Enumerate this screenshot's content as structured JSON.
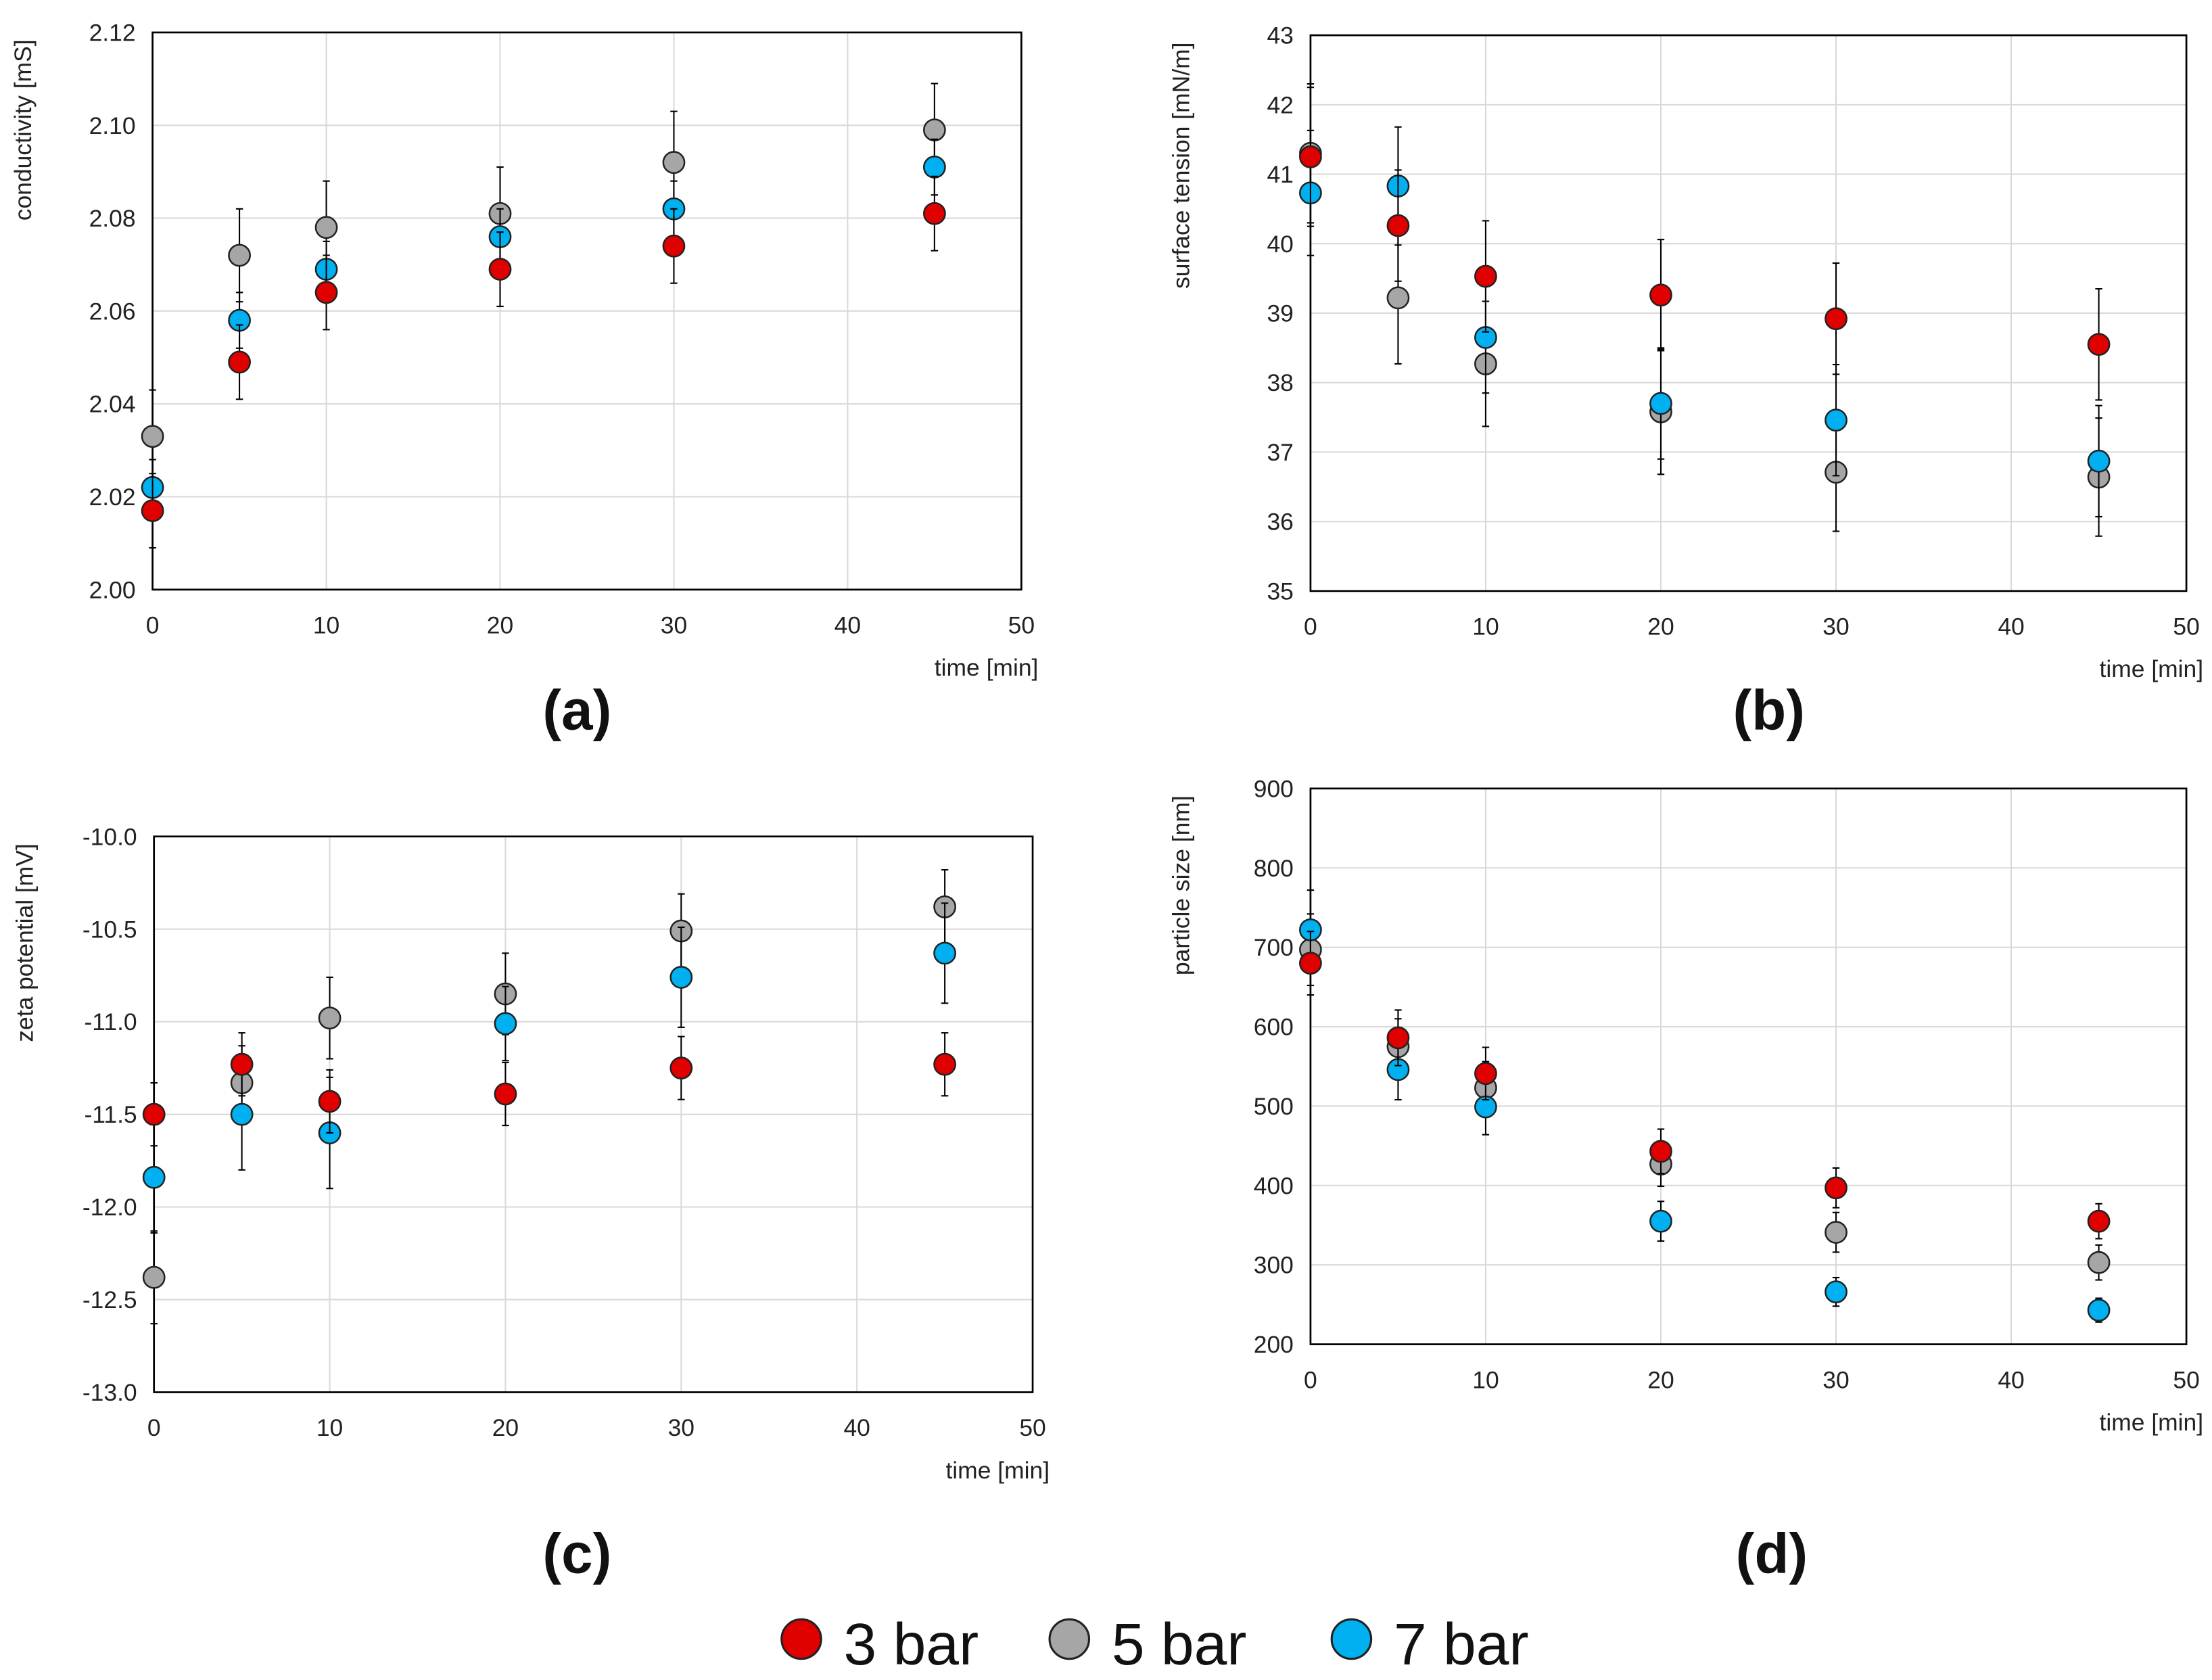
{
  "legend": [
    {
      "name": "3 bar",
      "color": "#e00000"
    },
    {
      "name": "5 bar",
      "color": "#a6a6a6"
    },
    {
      "name": "7 bar",
      "color": "#00b0f0"
    }
  ],
  "chart_data": [
    {
      "type": "scatter",
      "panel_label": "(a)",
      "xlabel": "time [min]",
      "ylabel": "conductivity [mS]",
      "xlim": [
        0,
        50
      ],
      "xticks": [
        0,
        10,
        20,
        30,
        40,
        50
      ],
      "ylim": [
        2.0,
        2.12
      ],
      "yticks": [
        "2.00",
        "2.02",
        "2.04",
        "2.06",
        "2.08",
        "2.10",
        "2.12"
      ],
      "grid": true,
      "x": [
        0,
        5,
        10,
        20,
        30,
        45
      ],
      "series": [
        {
          "name": "3 bar",
          "values": [
            2.017,
            2.049,
            2.064,
            2.069,
            2.074,
            2.081
          ],
          "error": [
            0.008,
            0.008,
            0.008,
            0.008,
            0.008,
            0.008
          ]
        },
        {
          "name": "5 bar",
          "values": [
            2.033,
            2.072,
            2.078,
            2.081,
            2.092,
            2.099
          ],
          "error": [
            0.01,
            0.01,
            0.01,
            0.01,
            0.011,
            0.01
          ]
        },
        {
          "name": "7 bar",
          "values": [
            2.022,
            2.058,
            2.069,
            2.076,
            2.082,
            2.091
          ],
          "error": [
            0.006,
            0.006,
            0.006,
            0.006,
            0.006,
            0.006
          ]
        }
      ]
    },
    {
      "type": "scatter",
      "panel_label": "(b)",
      "xlabel": "time [min]",
      "ylabel": "surface tension [mN/m]",
      "xlim": [
        0,
        50
      ],
      "xticks": [
        0,
        10,
        20,
        30,
        40,
        50
      ],
      "ylim": [
        35,
        43
      ],
      "yticks": [
        "35",
        "36",
        "37",
        "38",
        "39",
        "40",
        "41",
        "42",
        "43"
      ],
      "grid": true,
      "x": [
        0,
        5,
        10,
        20,
        30,
        45
      ],
      "series": [
        {
          "name": "3 bar",
          "values": [
            41.25,
            40.26,
            39.53,
            39.26,
            38.92,
            38.55
          ],
          "error": [
            1.0,
            0.8,
            0.8,
            0.8,
            0.8,
            0.8
          ]
        },
        {
          "name": "5 bar",
          "values": [
            41.3,
            39.22,
            38.27,
            37.58,
            36.71,
            36.64
          ],
          "error": [
            1.0,
            0.95,
            0.9,
            0.9,
            0.85,
            0.85
          ]
        },
        {
          "name": "7 bar",
          "values": [
            40.73,
            40.83,
            38.65,
            37.7,
            37.46,
            36.87
          ],
          "error": [
            0.9,
            0.85,
            0.8,
            0.8,
            0.8,
            0.8
          ]
        }
      ]
    },
    {
      "type": "scatter",
      "panel_label": "(c)",
      "xlabel": "time [min]",
      "ylabel": "zeta potential [mV]",
      "xlim": [
        0,
        50
      ],
      "xticks": [
        0,
        10,
        20,
        30,
        40,
        50
      ],
      "ylim": [
        -13.0,
        -10.0
      ],
      "yticks": [
        "-13.0",
        "-12.5",
        "-12.0",
        "-11.5",
        "-11.0",
        "-10.5",
        "-10.0"
      ],
      "grid": true,
      "x": [
        0,
        5,
        10,
        20,
        30,
        45
      ],
      "series": [
        {
          "name": "3 bar",
          "values": [
            -11.5,
            -11.23,
            -11.43,
            -11.39,
            -11.25,
            -11.23
          ],
          "error": [
            0.17,
            0.17,
            0.17,
            0.17,
            0.17,
            0.17
          ]
        },
        {
          "name": "5 bar",
          "values": [
            -12.38,
            -11.33,
            -10.98,
            -10.85,
            -10.51,
            -10.38
          ],
          "error": [
            0.25,
            0.2,
            0.22,
            0.22,
            0.2,
            0.2
          ]
        },
        {
          "name": "7 bar",
          "values": [
            -11.84,
            -11.5,
            -11.6,
            -11.01,
            -10.76,
            -10.63
          ],
          "error": [
            0.3,
            0.3,
            0.3,
            0.2,
            0.27,
            0.27
          ]
        }
      ]
    },
    {
      "type": "scatter",
      "panel_label": "(d)",
      "xlabel": "time [min]",
      "ylabel": "particle size [nm]",
      "xlim": [
        0,
        50
      ],
      "xticks": [
        0,
        10,
        20,
        30,
        40,
        50
      ],
      "ylim": [
        200,
        900
      ],
      "yticks": [
        "200",
        "300",
        "400",
        "500",
        "600",
        "700",
        "800",
        "900"
      ],
      "grid": true,
      "x": [
        0,
        5,
        10,
        20,
        30,
        45
      ],
      "series": [
        {
          "name": "3 bar",
          "values": [
            680,
            586,
            541,
            443,
            397,
            355
          ],
          "error": [
            40,
            35,
            33,
            28,
            25,
            22
          ]
        },
        {
          "name": "5 bar",
          "values": [
            697,
            575,
            523,
            427,
            341,
            303
          ],
          "error": [
            45,
            35,
            33,
            28,
            25,
            22
          ]
        },
        {
          "name": "7 bar",
          "values": [
            722,
            546,
            499,
            355,
            266,
            243
          ],
          "error": [
            50,
            38,
            35,
            25,
            18,
            15
          ]
        }
      ]
    }
  ]
}
